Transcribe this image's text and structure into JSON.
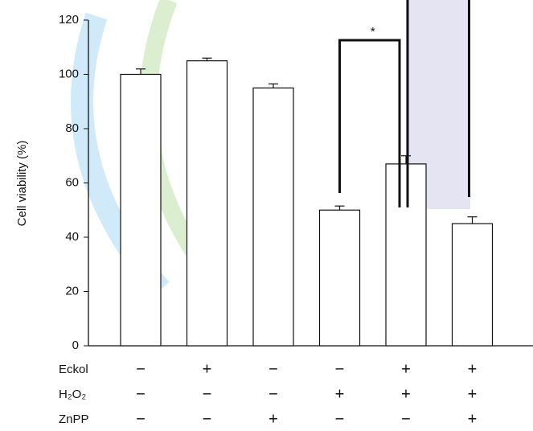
{
  "chart_data": {
    "type": "bar",
    "y_label": "Cell viability (%)",
    "categories": [
      null,
      null,
      null,
      null,
      null,
      null
    ],
    "values": [
      100,
      105,
      95,
      50,
      67,
      45
    ],
    "errors": [
      2,
      1,
      1.5,
      1.5,
      3,
      2.5
    ],
    "color": "#ffffff",
    "ylim": [
      0,
      120
    ],
    "yticks": [
      0,
      20,
      40,
      60,
      80,
      100,
      120
    ],
    "annotations": [
      "*"
    ],
    "treatments": [
      {
        "name": "Eckol",
        "signs": [
          "−",
          "+",
          "−",
          "−",
          "+",
          "+"
        ]
      },
      {
        "name": "H₂O₂",
        "signs": [
          "−",
          "−",
          "−",
          "+",
          "+",
          "+"
        ]
      },
      {
        "name": "ZnPP",
        "signs": [
          "−",
          "−",
          "+",
          "−",
          "−",
          "+"
        ]
      }
    ]
  }
}
